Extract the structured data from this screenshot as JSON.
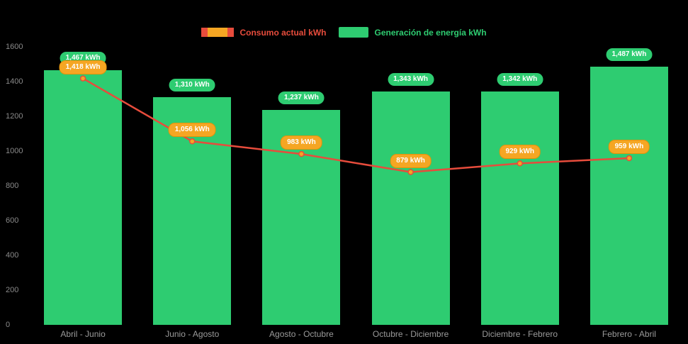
{
  "background_color": "#000000",
  "colors": {
    "bar": "#2ecc71",
    "line": "#e74c3c",
    "consumption_badge": "#f5a623",
    "consumption_badge_border": "#e0930b",
    "generation_badge": "#2ecc71",
    "axis_text": "#8a8a8a",
    "badge_text": "#ffffff"
  },
  "legend": {
    "consumption_label": "Consumo actual kWh",
    "generation_label": "Generación de energía kWh"
  },
  "chart_data": {
    "type": "bar",
    "combo": "bar+line",
    "title": "",
    "xlabel": "",
    "ylabel": "",
    "categories": [
      "Abril - Junio",
      "Junio - Agosto",
      "Agosto - Octubre",
      "Octubre - Diciembre",
      "Diciembre - Febrero",
      "Febrero - Abril"
    ],
    "series": [
      {
        "name": "Generación de energía kWh",
        "type": "bar",
        "color": "#2ecc71",
        "values": [
          1467,
          1310,
          1237,
          1343,
          1342,
          1487
        ],
        "labels": [
          "1,467 kWh",
          "1,310 kWh",
          "1,237 kWh",
          "1,343 kWh",
          "1,342 kWh",
          "1,487 kWh"
        ]
      },
      {
        "name": "Consumo actual kWh",
        "type": "line",
        "color": "#e74c3c",
        "values": [
          1418,
          1056,
          983,
          879,
          929,
          959
        ],
        "labels": [
          "1,418 kWh",
          "1,056 kWh",
          "983 kWh",
          "879 kWh",
          "929 kWh",
          "959 kWh"
        ]
      }
    ],
    "ylim": [
      0,
      1600
    ],
    "yticks": [
      0,
      200,
      400,
      600,
      800,
      1000,
      1200,
      1400,
      1600
    ],
    "legend_position": "top",
    "grid": false
  }
}
